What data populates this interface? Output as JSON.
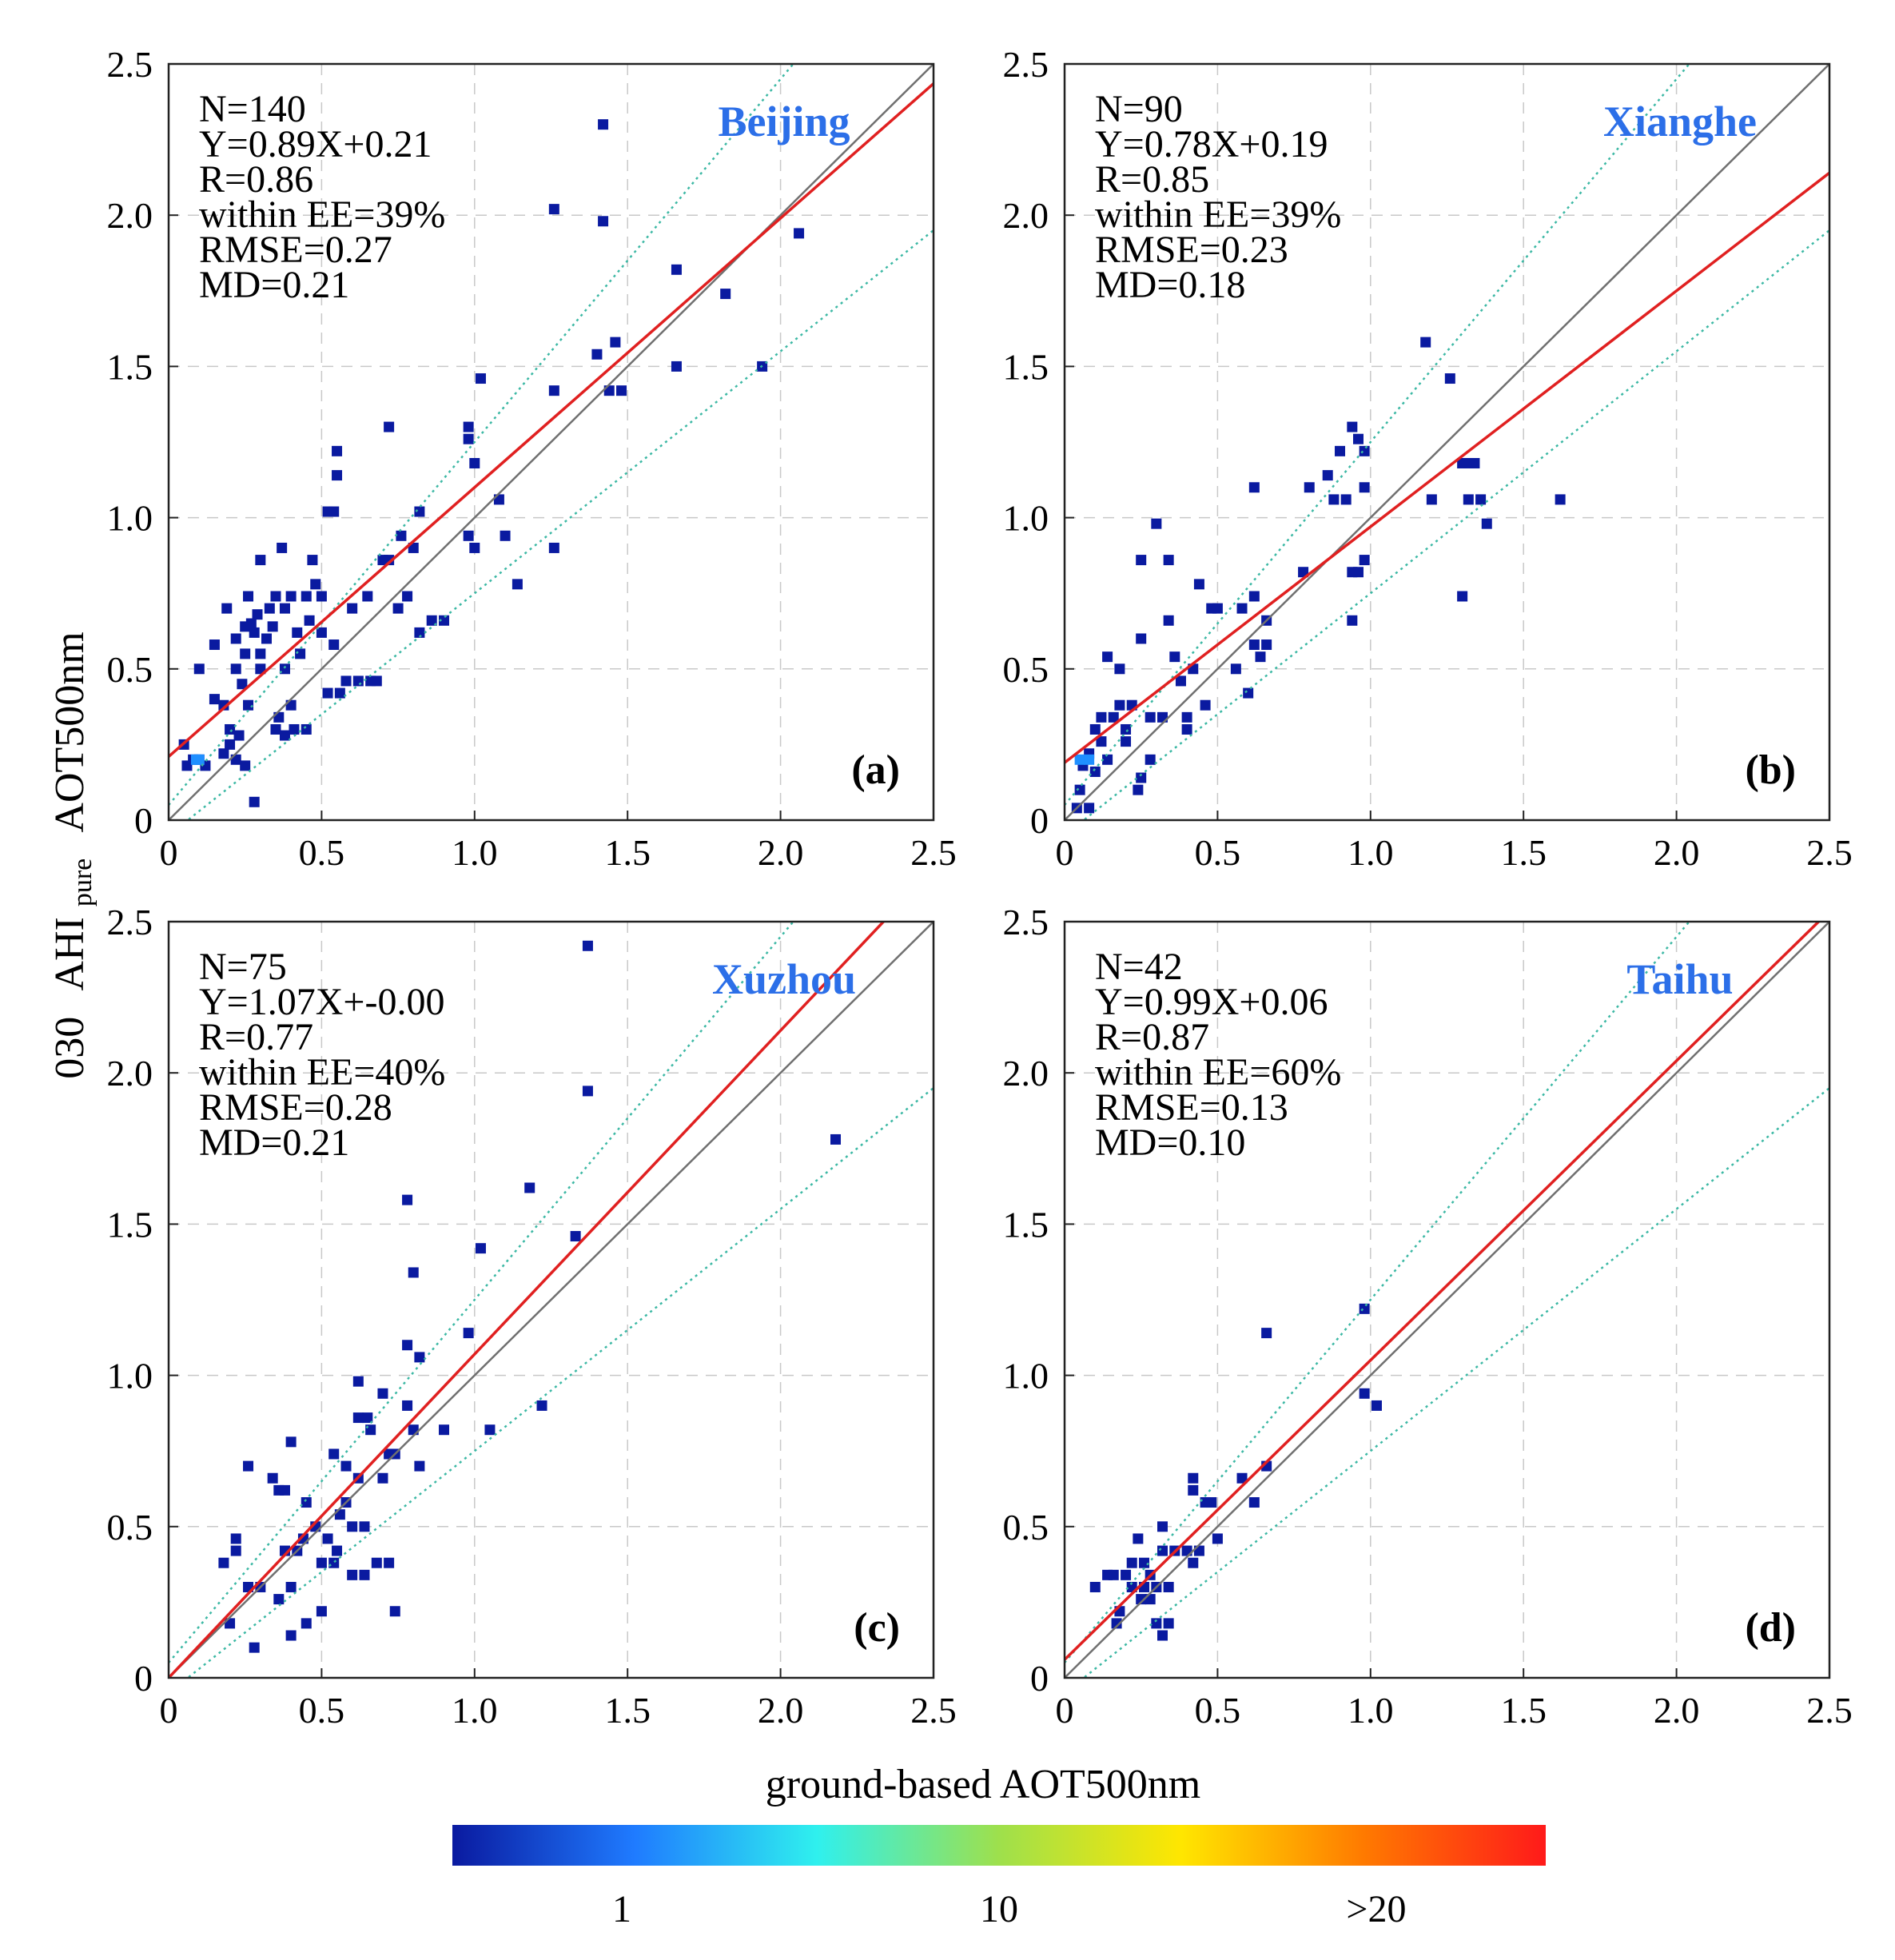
{
  "figure": {
    "y_axis_label": {
      "prefix": "030",
      "main": "AHI",
      "subscript": "pure",
      "suffix": "AOT500nm"
    },
    "x_axis_label": "ground-based AOT500nm",
    "colorbar": {
      "colors": [
        "#0a1aa0",
        "#1f7bff",
        "#2ff0ee",
        "#9ee04c",
        "#ffe600",
        "#ff7a00",
        "#ff1a1a"
      ],
      "tick_labels": [
        "1",
        "10",
        ">20"
      ],
      "tick_fractions": [
        0.155,
        0.5,
        0.845
      ]
    }
  },
  "chart_data": [
    {
      "type": "scatter",
      "id": "a",
      "panel_label": "(a)",
      "site": "Beijing",
      "xlim": [
        0,
        2.5
      ],
      "ylim": [
        0,
        2.5
      ],
      "xticks": [
        0,
        0.5,
        1.0,
        1.5,
        2.0,
        2.5
      ],
      "yticks": [
        0,
        0.5,
        1.0,
        1.5,
        2.0,
        2.5
      ],
      "tick_labels": [
        "0",
        "0.5",
        "1.0",
        "1.5",
        "2.0",
        "2.5"
      ],
      "stats": [
        "N=140",
        "Y=0.89X+0.21",
        "R=0.86",
        "within EE=39%",
        "RMSE=0.27",
        "MD=0.21"
      ],
      "fit": {
        "slope": 0.89,
        "intercept": 0.21
      },
      "ee": {
        "abs": 0.05,
        "rel": 0.2
      },
      "points": [
        [
          0.05,
          0.25
        ],
        [
          0.06,
          0.18
        ],
        [
          0.08,
          0.2
        ],
        [
          0.1,
          0.2
        ],
        [
          0.12,
          0.18
        ],
        [
          0.1,
          0.5
        ],
        [
          0.15,
          0.58
        ],
        [
          0.15,
          0.4
        ],
        [
          0.18,
          0.22
        ],
        [
          0.18,
          0.38
        ],
        [
          0.19,
          0.7
        ],
        [
          0.2,
          0.3
        ],
        [
          0.2,
          0.25
        ],
        [
          0.22,
          0.5
        ],
        [
          0.22,
          0.6
        ],
        [
          0.22,
          0.2
        ],
        [
          0.23,
          0.28
        ],
        [
          0.24,
          0.45
        ],
        [
          0.25,
          0.64
        ],
        [
          0.25,
          0.55
        ],
        [
          0.25,
          0.18
        ],
        [
          0.26,
          0.38
        ],
        [
          0.26,
          0.74
        ],
        [
          0.27,
          0.65
        ],
        [
          0.28,
          0.62
        ],
        [
          0.28,
          0.06
        ],
        [
          0.29,
          0.68
        ],
        [
          0.3,
          0.55
        ],
        [
          0.3,
          0.5
        ],
        [
          0.3,
          0.86
        ],
        [
          0.32,
          0.6
        ],
        [
          0.33,
          0.7
        ],
        [
          0.34,
          0.64
        ],
        [
          0.35,
          0.3
        ],
        [
          0.35,
          0.74
        ],
        [
          0.36,
          0.34
        ],
        [
          0.37,
          0.9
        ],
        [
          0.38,
          0.5
        ],
        [
          0.38,
          0.28
        ],
        [
          0.38,
          0.7
        ],
        [
          0.4,
          0.38
        ],
        [
          0.4,
          0.74
        ],
        [
          0.41,
          0.3
        ],
        [
          0.42,
          0.62
        ],
        [
          0.43,
          0.55
        ],
        [
          0.45,
          0.74
        ],
        [
          0.45,
          0.3
        ],
        [
          0.46,
          0.66
        ],
        [
          0.47,
          0.86
        ],
        [
          0.48,
          0.78
        ],
        [
          0.5,
          0.62
        ],
        [
          0.5,
          0.74
        ],
        [
          0.52,
          1.02
        ],
        [
          0.52,
          0.42
        ],
        [
          0.54,
          1.02
        ],
        [
          0.54,
          0.58
        ],
        [
          0.55,
          1.22
        ],
        [
          0.55,
          1.14
        ],
        [
          0.56,
          0.42
        ],
        [
          0.58,
          0.46
        ],
        [
          0.6,
          0.7
        ],
        [
          0.62,
          0.46
        ],
        [
          0.65,
          0.74
        ],
        [
          0.66,
          0.46
        ],
        [
          0.68,
          0.46
        ],
        [
          0.7,
          0.86
        ],
        [
          0.72,
          1.3
        ],
        [
          0.72,
          0.86
        ],
        [
          0.75,
          0.7
        ],
        [
          0.76,
          0.94
        ],
        [
          0.78,
          0.74
        ],
        [
          0.8,
          0.9
        ],
        [
          0.82,
          0.62
        ],
        [
          0.82,
          1.02
        ],
        [
          0.86,
          0.66
        ],
        [
          0.9,
          0.66
        ],
        [
          0.98,
          1.3
        ],
        [
          0.98,
          1.26
        ],
        [
          0.98,
          0.94
        ],
        [
          1.0,
          1.18
        ],
        [
          1.0,
          0.9
        ],
        [
          1.02,
          1.46
        ],
        [
          1.08,
          1.06
        ],
        [
          1.1,
          0.94
        ],
        [
          1.14,
          0.78
        ],
        [
          1.26,
          2.02
        ],
        [
          1.26,
          1.42
        ],
        [
          1.26,
          0.9
        ],
        [
          1.4,
          1.54
        ],
        [
          1.42,
          1.98
        ],
        [
          1.42,
          2.3
        ],
        [
          1.44,
          1.42
        ],
        [
          1.46,
          1.58
        ],
        [
          1.48,
          1.42
        ],
        [
          1.66,
          1.82
        ],
        [
          1.66,
          1.5
        ],
        [
          1.82,
          1.74
        ],
        [
          1.94,
          1.5
        ],
        [
          2.06,
          1.94
        ]
      ],
      "light_points": [
        [
          0.09,
          0.2
        ],
        [
          0.1,
          0.2
        ]
      ]
    },
    {
      "type": "scatter",
      "id": "b",
      "panel_label": "(b)",
      "site": "Xianghe",
      "xlim": [
        0,
        2.5
      ],
      "ylim": [
        0,
        2.5
      ],
      "xticks": [
        0,
        0.5,
        1.0,
        1.5,
        2.0,
        2.5
      ],
      "yticks": [
        0,
        0.5,
        1.0,
        1.5,
        2.0,
        2.5
      ],
      "tick_labels": [
        "0",
        "0.5",
        "1.0",
        "1.5",
        "2.0",
        "2.5"
      ],
      "stats": [
        "N=90",
        "Y=0.78X+0.19",
        "R=0.85",
        "within EE=39%",
        "RMSE=0.23",
        "MD=0.18"
      ],
      "fit": {
        "slope": 0.78,
        "intercept": 0.19
      },
      "ee": {
        "abs": 0.05,
        "rel": 0.2
      },
      "points": [
        [
          0.04,
          0.04
        ],
        [
          0.05,
          0.1
        ],
        [
          0.06,
          0.18
        ],
        [
          0.08,
          0.22
        ],
        [
          0.08,
          0.04
        ],
        [
          0.1,
          0.3
        ],
        [
          0.1,
          0.16
        ],
        [
          0.12,
          0.26
        ],
        [
          0.12,
          0.34
        ],
        [
          0.14,
          0.54
        ],
        [
          0.14,
          0.2
        ],
        [
          0.16,
          0.34
        ],
        [
          0.18,
          0.5
        ],
        [
          0.18,
          0.38
        ],
        [
          0.2,
          0.3
        ],
        [
          0.2,
          0.26
        ],
        [
          0.22,
          0.38
        ],
        [
          0.24,
          0.1
        ],
        [
          0.25,
          0.14
        ],
        [
          0.25,
          0.6
        ],
        [
          0.25,
          0.86
        ],
        [
          0.28,
          0.2
        ],
        [
          0.28,
          0.34
        ],
        [
          0.3,
          0.98
        ],
        [
          0.32,
          0.34
        ],
        [
          0.34,
          0.86
        ],
        [
          0.34,
          0.66
        ],
        [
          0.36,
          0.54
        ],
        [
          0.38,
          0.46
        ],
        [
          0.4,
          0.3
        ],
        [
          0.4,
          0.34
        ],
        [
          0.42,
          0.5
        ],
        [
          0.44,
          0.78
        ],
        [
          0.46,
          0.38
        ],
        [
          0.48,
          0.7
        ],
        [
          0.5,
          0.7
        ],
        [
          0.56,
          0.5
        ],
        [
          0.58,
          0.7
        ],
        [
          0.6,
          0.42
        ],
        [
          0.62,
          0.58
        ],
        [
          0.62,
          0.74
        ],
        [
          0.62,
          1.1
        ],
        [
          0.64,
          0.54
        ],
        [
          0.66,
          0.66
        ],
        [
          0.66,
          0.58
        ],
        [
          0.78,
          0.82
        ],
        [
          0.8,
          1.1
        ],
        [
          0.86,
          1.14
        ],
        [
          0.88,
          1.06
        ],
        [
          0.9,
          1.22
        ],
        [
          0.92,
          1.06
        ],
        [
          0.94,
          1.3
        ],
        [
          0.94,
          0.82
        ],
        [
          0.94,
          0.66
        ],
        [
          0.96,
          1.26
        ],
        [
          0.96,
          0.82
        ],
        [
          0.98,
          1.22
        ],
        [
          0.98,
          0.86
        ],
        [
          0.98,
          1.1
        ],
        [
          1.18,
          1.58
        ],
        [
          1.2,
          1.06
        ],
        [
          1.26,
          1.46
        ],
        [
          1.3,
          1.18
        ],
        [
          1.3,
          0.74
        ],
        [
          1.32,
          1.06
        ],
        [
          1.32,
          1.18
        ],
        [
          1.34,
          1.18
        ],
        [
          1.36,
          1.06
        ],
        [
          1.38,
          0.98
        ],
        [
          1.62,
          1.06
        ]
      ],
      "light_points": [
        [
          0.05,
          0.2
        ],
        [
          0.08,
          0.2
        ]
      ]
    },
    {
      "type": "scatter",
      "id": "c",
      "panel_label": "(c)",
      "site": "Xuzhou",
      "xlim": [
        0,
        2.5
      ],
      "ylim": [
        0,
        2.5
      ],
      "xticks": [
        0,
        0.5,
        1.0,
        1.5,
        2.0,
        2.5
      ],
      "yticks": [
        0,
        0.5,
        1.0,
        1.5,
        2.0,
        2.5
      ],
      "tick_labels": [
        "0",
        "0.5",
        "1.0",
        "1.5",
        "2.0",
        "2.5"
      ],
      "stats": [
        "N=75",
        "Y=1.07X+-0.00",
        "R=0.77",
        "within EE=40%",
        "RMSE=0.28",
        "MD=0.21"
      ],
      "fit": {
        "slope": 1.07,
        "intercept": 0.0
      },
      "ee": {
        "abs": 0.05,
        "rel": 0.2
      },
      "points": [
        [
          0.18,
          0.38
        ],
        [
          0.2,
          0.18
        ],
        [
          0.22,
          0.46
        ],
        [
          0.22,
          0.42
        ],
        [
          0.26,
          0.3
        ],
        [
          0.26,
          0.7
        ],
        [
          0.28,
          0.1
        ],
        [
          0.3,
          0.3
        ],
        [
          0.34,
          0.66
        ],
        [
          0.36,
          0.62
        ],
        [
          0.36,
          0.26
        ],
        [
          0.38,
          0.42
        ],
        [
          0.38,
          0.62
        ],
        [
          0.4,
          0.14
        ],
        [
          0.4,
          0.78
        ],
        [
          0.4,
          0.3
        ],
        [
          0.42,
          0.42
        ],
        [
          0.44,
          0.46
        ],
        [
          0.45,
          0.58
        ],
        [
          0.45,
          0.18
        ],
        [
          0.48,
          0.5
        ],
        [
          0.5,
          0.22
        ],
        [
          0.5,
          0.38
        ],
        [
          0.52,
          0.46
        ],
        [
          0.54,
          0.38
        ],
        [
          0.54,
          0.74
        ],
        [
          0.55,
          0.42
        ],
        [
          0.56,
          0.54
        ],
        [
          0.58,
          0.7
        ],
        [
          0.58,
          0.58
        ],
        [
          0.6,
          0.34
        ],
        [
          0.6,
          0.5
        ],
        [
          0.62,
          0.86
        ],
        [
          0.62,
          0.98
        ],
        [
          0.62,
          0.66
        ],
        [
          0.64,
          0.5
        ],
        [
          0.64,
          0.34
        ],
        [
          0.65,
          0.86
        ],
        [
          0.66,
          0.82
        ],
        [
          0.68,
          0.38
        ],
        [
          0.7,
          0.94
        ],
        [
          0.7,
          0.66
        ],
        [
          0.72,
          0.38
        ],
        [
          0.72,
          0.74
        ],
        [
          0.74,
          0.22
        ],
        [
          0.74,
          0.74
        ],
        [
          0.78,
          1.1
        ],
        [
          0.78,
          1.58
        ],
        [
          0.78,
          0.9
        ],
        [
          0.8,
          0.82
        ],
        [
          0.8,
          1.34
        ],
        [
          0.82,
          1.06
        ],
        [
          0.82,
          0.7
        ],
        [
          0.9,
          0.82
        ],
        [
          0.98,
          1.14
        ],
        [
          1.02,
          1.42
        ],
        [
          1.05,
          0.82
        ],
        [
          1.18,
          1.62
        ],
        [
          1.22,
          0.9
        ],
        [
          1.33,
          1.46
        ],
        [
          1.37,
          2.42
        ],
        [
          1.37,
          1.94
        ],
        [
          2.18,
          1.78
        ]
      ],
      "light_points": []
    },
    {
      "type": "scatter",
      "id": "d",
      "panel_label": "(d)",
      "site": "Taihu",
      "xlim": [
        0,
        2.5
      ],
      "ylim": [
        0,
        2.5
      ],
      "xticks": [
        0,
        0.5,
        1.0,
        1.5,
        2.0,
        2.5
      ],
      "yticks": [
        0,
        0.5,
        1.0,
        1.5,
        2.0,
        2.5
      ],
      "tick_labels": [
        "0",
        "0.5",
        "1.0",
        "1.5",
        "2.0",
        "2.5"
      ],
      "stats": [
        "N=42",
        "Y=0.99X+0.06",
        "R=0.87",
        "within EE=60%",
        "RMSE=0.13",
        "MD=0.10"
      ],
      "fit": {
        "slope": 0.99,
        "intercept": 0.06
      },
      "ee": {
        "abs": 0.05,
        "rel": 0.2
      },
      "points": [
        [
          0.1,
          0.3
        ],
        [
          0.14,
          0.34
        ],
        [
          0.16,
          0.34
        ],
        [
          0.17,
          0.18
        ],
        [
          0.18,
          0.22
        ],
        [
          0.2,
          0.34
        ],
        [
          0.22,
          0.38
        ],
        [
          0.22,
          0.3
        ],
        [
          0.24,
          0.46
        ],
        [
          0.25,
          0.26
        ],
        [
          0.26,
          0.38
        ],
        [
          0.26,
          0.3
        ],
        [
          0.28,
          0.26
        ],
        [
          0.28,
          0.34
        ],
        [
          0.3,
          0.3
        ],
        [
          0.3,
          0.18
        ],
        [
          0.32,
          0.14
        ],
        [
          0.32,
          0.42
        ],
        [
          0.32,
          0.5
        ],
        [
          0.34,
          0.3
        ],
        [
          0.34,
          0.18
        ],
        [
          0.36,
          0.42
        ],
        [
          0.4,
          0.42
        ],
        [
          0.42,
          0.66
        ],
        [
          0.42,
          0.62
        ],
        [
          0.42,
          0.38
        ],
        [
          0.44,
          0.42
        ],
        [
          0.46,
          0.58
        ],
        [
          0.48,
          0.58
        ],
        [
          0.5,
          0.46
        ],
        [
          0.58,
          0.66
        ],
        [
          0.62,
          0.58
        ],
        [
          0.66,
          1.14
        ],
        [
          0.66,
          0.7
        ],
        [
          0.98,
          1.22
        ],
        [
          0.98,
          0.94
        ],
        [
          1.02,
          0.9
        ]
      ],
      "light_points": []
    }
  ]
}
